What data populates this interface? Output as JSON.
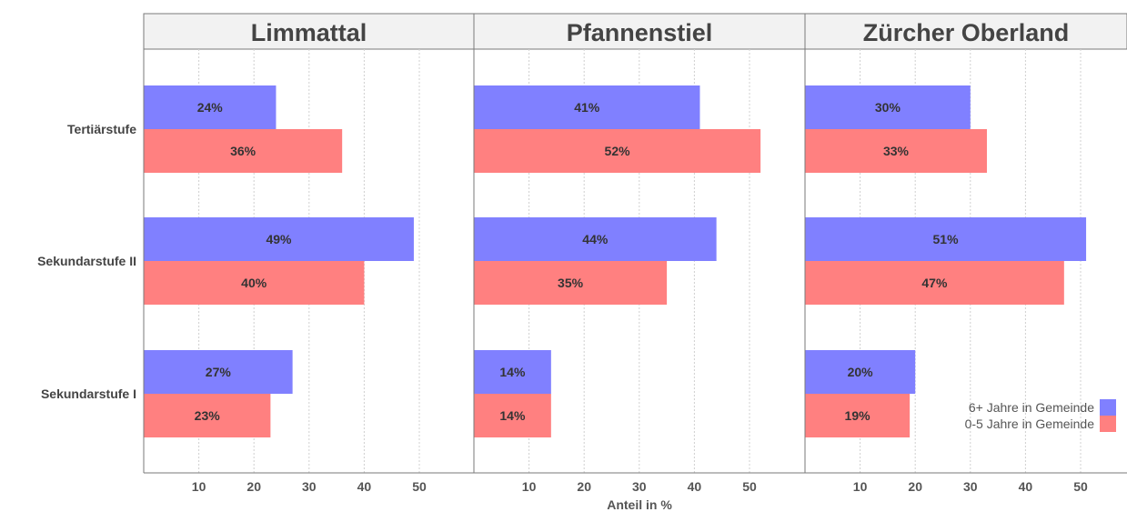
{
  "chart_data": {
    "type": "bar",
    "orientation": "horizontal",
    "xlabel": "Anteil in %",
    "xlim": [
      0,
      57
    ],
    "xticks": [
      10,
      20,
      30,
      40,
      50
    ],
    "grid": true,
    "categories": [
      "Tertiärstufe",
      "Sekundarstufe II",
      "Sekundarstufe I"
    ],
    "legend": {
      "placement": "bottom-right",
      "entries": [
        "6+ Jahre in Gemeinde",
        "0-5 Jahre in Gemeinde"
      ]
    },
    "colors": {
      "6+ Jahre in Gemeinde": "#8080ff",
      "0-5 Jahre in Gemeinde": "#ff8080"
    },
    "panels": [
      {
        "title": "Limmattal",
        "series": [
          {
            "name": "6+ Jahre in Gemeinde",
            "values": [
              24,
              49,
              27
            ],
            "labels": [
              "24%",
              "49%",
              "27%"
            ]
          },
          {
            "name": "0-5 Jahre in Gemeinde",
            "values": [
              36,
              40,
              23
            ],
            "labels": [
              "36%",
              "40%",
              "23%"
            ]
          }
        ]
      },
      {
        "title": "Pfannenstiel",
        "series": [
          {
            "name": "6+ Jahre in Gemeinde",
            "values": [
              41,
              44,
              14
            ],
            "labels": [
              "41%",
              "44%",
              "14%"
            ]
          },
          {
            "name": "0-5 Jahre in Gemeinde",
            "values": [
              52,
              35,
              14
            ],
            "labels": [
              "52%",
              "35%",
              "14%"
            ]
          }
        ]
      },
      {
        "title": "Zürcher Oberland",
        "series": [
          {
            "name": "6+ Jahre in Gemeinde",
            "values": [
              30,
              51,
              20
            ],
            "labels": [
              "30%",
              "51%",
              "20%"
            ]
          },
          {
            "name": "0-5 Jahre in Gemeinde",
            "values": [
              33,
              47,
              19
            ],
            "labels": [
              "33%",
              "47%",
              "19%"
            ]
          }
        ]
      }
    ]
  }
}
